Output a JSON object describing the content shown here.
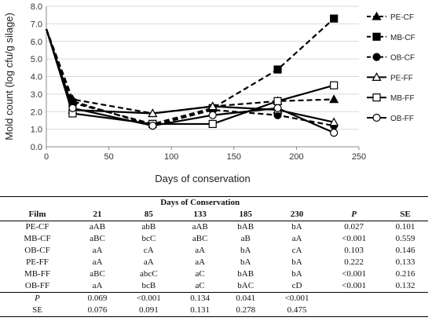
{
  "chart_data": {
    "type": "line",
    "xlabel": "Days of conservation",
    "ylabel": "Mold count (log cfu/g silage)",
    "xlim": [
      0,
      250
    ],
    "ylim": [
      0,
      8
    ],
    "xticks": [
      "0",
      "50",
      "100",
      "150",
      "200",
      "250"
    ],
    "yticks": [
      "0.0",
      "1.0",
      "2.0",
      "3.0",
      "4.0",
      "5.0",
      "6.0",
      "7.0",
      "8.0"
    ],
    "legend_position": "right",
    "x": [
      0,
      21,
      85,
      133,
      185,
      230
    ],
    "series": [
      {
        "name": "PE-CF",
        "values": [
          6.7,
          2.7,
          1.9,
          2.3,
          2.6,
          2.7
        ],
        "marker": "triangle",
        "filled": true,
        "dashed": true
      },
      {
        "name": "MB-CF",
        "values": [
          6.7,
          2.5,
          1.3,
          2.2,
          4.4,
          7.3
        ],
        "marker": "square",
        "filled": true,
        "dashed": true
      },
      {
        "name": "OB-CF",
        "values": [
          6.7,
          2.6,
          1.2,
          2.1,
          1.8,
          1.2
        ],
        "marker": "circle",
        "filled": true,
        "dashed": true
      },
      {
        "name": "PE-FF",
        "values": [
          6.7,
          2.1,
          1.9,
          2.3,
          2.1,
          1.4
        ],
        "marker": "triangle",
        "filled": false,
        "dashed": false
      },
      {
        "name": "MB-FF",
        "values": [
          6.7,
          1.9,
          1.3,
          1.3,
          2.6,
          3.5
        ],
        "marker": "square",
        "filled": false,
        "dashed": false
      },
      {
        "name": "OB-FF",
        "values": [
          6.7,
          2.2,
          1.2,
          1.8,
          2.2,
          0.8
        ],
        "marker": "circle",
        "filled": false,
        "dashed": false
      }
    ]
  },
  "table": {
    "title": "Days of Conservation",
    "columns": [
      "Film",
      "21",
      "85",
      "133",
      "185",
      "230",
      "P",
      "SE"
    ],
    "rows": [
      [
        "PE-CF",
        "aAB",
        "abB",
        "aAB",
        "bAB",
        "bA",
        "0.027",
        "0.101"
      ],
      [
        "MB-CF",
        "aBC",
        "bcC",
        "aBC",
        "aB",
        "aA",
        "<0.001",
        "0.559"
      ],
      [
        "OB-CF",
        "aA",
        "cA",
        "aA",
        "bA",
        "cA",
        "0.103",
        "0.146"
      ],
      [
        "PE-FF",
        "aA",
        "aA",
        "aA",
        "bA",
        "bA",
        "0.222",
        "0.133"
      ],
      [
        "MB-FF",
        "aBC",
        "abcC",
        "aC",
        "bAB",
        "bA",
        "<0.001",
        "0.216"
      ],
      [
        "OB-FF",
        "aA",
        "bcB",
        "aC",
        "bAC",
        "cD",
        "<0.001",
        "0.132"
      ]
    ],
    "p_row": [
      "P",
      "0.069",
      "<0.001",
      "0.134",
      "0.041",
      "<0.001"
    ],
    "se_row": [
      "SE",
      "0.076",
      "0.091",
      "0.131",
      "0.278",
      "0.475"
    ]
  }
}
